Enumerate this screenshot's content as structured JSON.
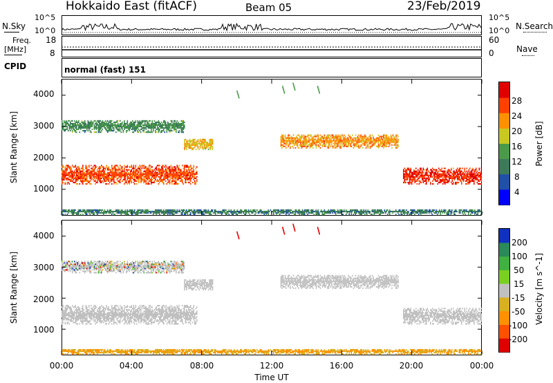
{
  "header": {
    "title": "Hokkaido East (fitACF)",
    "beam": "Beam 05",
    "date": "23/Feb/2019"
  },
  "noise_panel": {
    "left_label": "N.Sky",
    "right_label": "N.Search",
    "ticks": [
      "10^5",
      "10^0"
    ],
    "right_ticks": [
      "10^5",
      "10^0"
    ]
  },
  "freq_panel": {
    "left_label_1": "Freq.",
    "left_label_2": "[MHz]",
    "left_ticks": [
      "18",
      "8"
    ],
    "right_label": "Nave",
    "right_ticks": [
      "60",
      "0"
    ]
  },
  "cpid_panel": {
    "label": "CPID",
    "text": "normal (fast) 151"
  },
  "colors": {
    "power_scale": [
      "#0000ff",
      "#2050a8",
      "#3c7a5a",
      "#4a9a4a",
      "#c8c820",
      "#ff9000",
      "#ff4000",
      "#e00000"
    ],
    "velocity_scale": [
      "#1030c0",
      "#2a8a5a",
      "#40b040",
      "#7ad020",
      "#c0c0c0",
      "#d8b020",
      "#ff9000",
      "#ff5000",
      "#e00000"
    ],
    "ground_scatter": "#c0c0c0"
  },
  "chart_data": [
    {
      "type": "heatmap",
      "name": "power-panel",
      "ylabel": "Slant Range [km]",
      "yticks": [
        "4000",
        "3000",
        "2000",
        "1000"
      ],
      "ylim": [
        180,
        4500
      ],
      "xlim_hours": [
        0,
        24
      ],
      "colorbar_label": "Power [dB]",
      "colorbar_ticks": [
        "28",
        "24",
        "20",
        "16",
        "12",
        "8",
        "4"
      ],
      "colorbar_range": [
        0,
        32
      ],
      "echo_regions": [
        {
          "t_start": 0.0,
          "t_end": 7.7,
          "range_start": 1150,
          "range_end": 1750,
          "level": 26
        },
        {
          "t_start": 0.0,
          "t_end": 7.0,
          "range_start": 2800,
          "range_end": 3200,
          "level": 12
        },
        {
          "t_start": 7.0,
          "t_end": 8.6,
          "range_start": 2250,
          "range_end": 2600,
          "level": 20
        },
        {
          "t_start": 12.5,
          "t_end": 19.2,
          "range_start": 2300,
          "range_end": 2750,
          "level": 22
        },
        {
          "t_start": 19.5,
          "t_end": 24.0,
          "range_start": 1150,
          "range_end": 1650,
          "level": 28
        },
        {
          "t_start": 0.0,
          "t_end": 24.0,
          "range_start": 180,
          "range_end": 350,
          "level": 10
        }
      ]
    },
    {
      "type": "heatmap",
      "name": "velocity-panel",
      "ylabel": "Slant Range [km]",
      "yticks": [
        "4000",
        "3000",
        "2000",
        "1000"
      ],
      "ylim": [
        180,
        4500
      ],
      "xlim_hours": [
        0,
        24
      ],
      "xticks": [
        "00:00",
        "04:00",
        "08:00",
        "12:00",
        "16:00",
        "20:00",
        "00:00"
      ],
      "xlabel": "Time UT",
      "colorbar_label": "Velocity [m s^-1]",
      "colorbar_ticks": [
        "200",
        "100",
        "50",
        "15",
        "-15",
        "-50",
        "-100",
        "-200"
      ],
      "colorbar_range": [
        -250,
        250
      ]
    }
  ]
}
